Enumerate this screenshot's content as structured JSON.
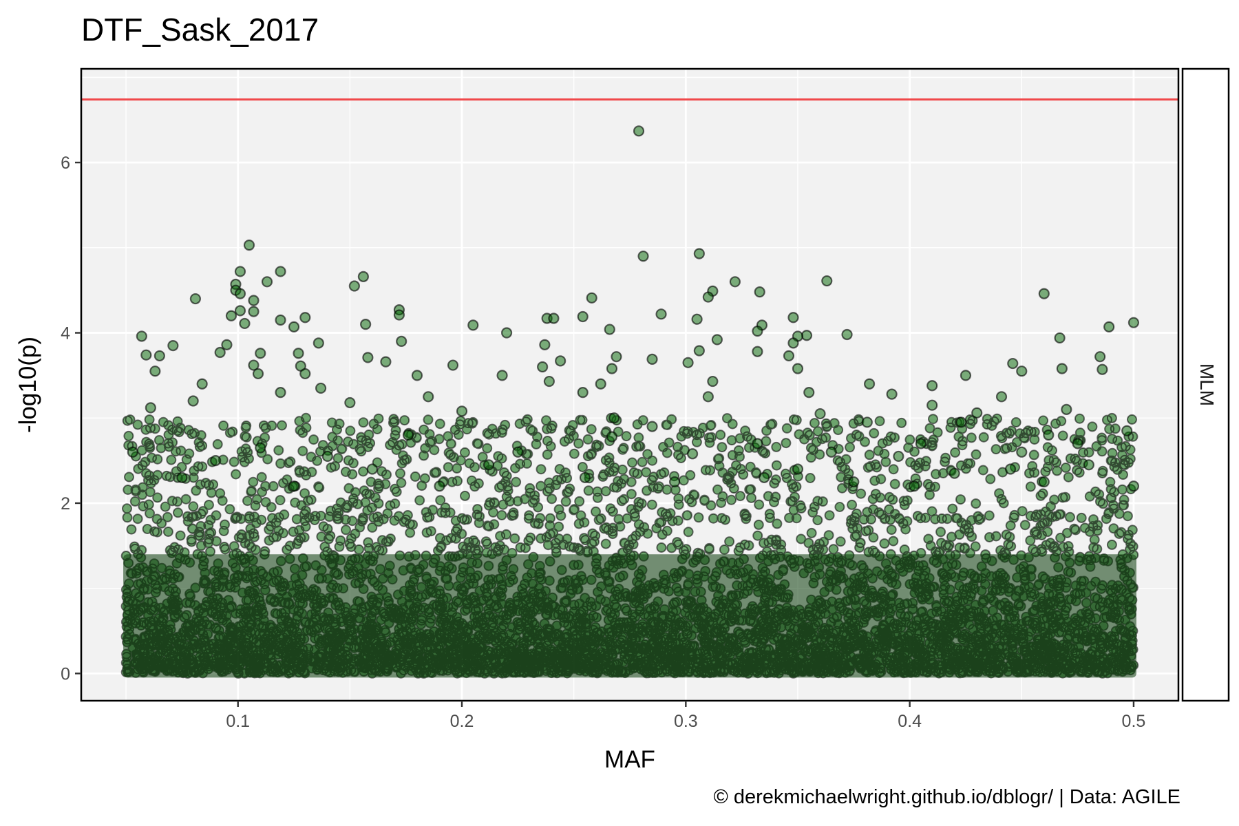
{
  "chart_data": {
    "type": "scatter",
    "title": "DTF_Sask_2017",
    "xlabel": "MAF",
    "ylabel": "-log10(p)",
    "facet_label": "MLM",
    "caption": "© derekmichaelwright.github.io/dblogr/ | Data: AGILE",
    "xlim": [
      0.03,
      0.52
    ],
    "ylim": [
      -0.32,
      7.1
    ],
    "x_ticks": [
      0.1,
      0.2,
      0.3,
      0.4,
      0.5
    ],
    "x_tick_labels": [
      "0.1",
      "0.2",
      "0.3",
      "0.4",
      "0.5"
    ],
    "y_ticks": [
      0,
      2,
      4,
      6
    ],
    "y_tick_labels": [
      "0",
      "2",
      "4",
      "6"
    ],
    "threshold_line": 6.74,
    "grid": true,
    "colors": {
      "panel_background": "#f2f2f2",
      "gridline": "#ffffff",
      "point_fill": "#006400",
      "point_stroke": "#000000",
      "threshold": "#f0484a"
    },
    "series": [
      {
        "points": [
          [
            0.279,
            6.37
          ],
          [
            0.281,
            4.9
          ],
          [
            0.105,
            5.03
          ],
          [
            0.306,
            4.93
          ],
          [
            0.101,
            4.72
          ],
          [
            0.119,
            4.72
          ],
          [
            0.156,
            4.66
          ],
          [
            0.363,
            4.61
          ],
          [
            0.113,
            4.6
          ],
          [
            0.322,
            4.6
          ],
          [
            0.099,
            4.57
          ],
          [
            0.152,
            4.55
          ],
          [
            0.099,
            4.5
          ],
          [
            0.312,
            4.49
          ],
          [
            0.333,
            4.48
          ],
          [
            0.101,
            4.46
          ],
          [
            0.46,
            4.46
          ],
          [
            0.31,
            4.42
          ],
          [
            0.258,
            4.41
          ],
          [
            0.081,
            4.4
          ],
          [
            0.107,
            4.38
          ],
          [
            0.172,
            4.27
          ],
          [
            0.101,
            4.26
          ],
          [
            0.107,
            4.25
          ],
          [
            0.289,
            4.22
          ],
          [
            0.172,
            4.21
          ],
          [
            0.097,
            4.2
          ],
          [
            0.254,
            4.19
          ],
          [
            0.13,
            4.18
          ],
          [
            0.238,
            4.17
          ],
          [
            0.241,
            4.17
          ],
          [
            0.348,
            4.18
          ],
          [
            0.305,
            4.16
          ],
          [
            0.119,
            4.15
          ],
          [
            0.5,
            4.12
          ],
          [
            0.103,
            4.11
          ],
          [
            0.157,
            4.1
          ],
          [
            0.205,
            4.09
          ],
          [
            0.334,
            4.09
          ],
          [
            0.125,
            4.07
          ],
          [
            0.489,
            4.07
          ],
          [
            0.266,
            4.04
          ],
          [
            0.332,
            4.02
          ],
          [
            0.22,
            4.0
          ],
          [
            0.372,
            3.98
          ],
          [
            0.354,
            3.97
          ],
          [
            0.057,
            3.96
          ],
          [
            0.35,
            3.96
          ],
          [
            0.467,
            3.94
          ],
          [
            0.314,
            3.92
          ],
          [
            0.173,
            3.9
          ],
          [
            0.136,
            3.88
          ],
          [
            0.348,
            3.88
          ],
          [
            0.095,
            3.86
          ],
          [
            0.237,
            3.86
          ],
          [
            0.071,
            3.85
          ],
          [
            0.306,
            3.79
          ],
          [
            0.332,
            3.78
          ],
          [
            0.092,
            3.77
          ],
          [
            0.11,
            3.76
          ],
          [
            0.127,
            3.76
          ],
          [
            0.059,
            3.74
          ],
          [
            0.065,
            3.73
          ],
          [
            0.346,
            3.73
          ],
          [
            0.485,
            3.72
          ],
          [
            0.269,
            3.72
          ],
          [
            0.158,
            3.71
          ],
          [
            0.285,
            3.69
          ],
          [
            0.244,
            3.67
          ],
          [
            0.166,
            3.66
          ],
          [
            0.301,
            3.65
          ],
          [
            0.107,
            3.62
          ],
          [
            0.128,
            3.61
          ],
          [
            0.236,
            3.6
          ],
          [
            0.446,
            3.64
          ],
          [
            0.267,
            3.58
          ],
          [
            0.468,
            3.58
          ],
          [
            0.35,
            3.58
          ],
          [
            0.063,
            3.55
          ],
          [
            0.45,
            3.55
          ],
          [
            0.486,
            3.57
          ],
          [
            0.196,
            3.62
          ],
          [
            0.109,
            3.52
          ],
          [
            0.13,
            3.52
          ],
          [
            0.239,
            3.43
          ],
          [
            0.312,
            3.43
          ],
          [
            0.218,
            3.5
          ],
          [
            0.425,
            3.5
          ],
          [
            0.41,
            3.38
          ],
          [
            0.18,
            3.5
          ],
          [
            0.084,
            3.4
          ],
          [
            0.262,
            3.4
          ],
          [
            0.382,
            3.4
          ],
          [
            0.137,
            3.35
          ],
          [
            0.355,
            3.3
          ],
          [
            0.392,
            3.28
          ],
          [
            0.254,
            3.3
          ],
          [
            0.441,
            3.25
          ],
          [
            0.119,
            3.3
          ],
          [
            0.185,
            3.25
          ],
          [
            0.08,
            3.2
          ],
          [
            0.31,
            3.25
          ],
          [
            0.15,
            3.18
          ],
          [
            0.41,
            3.15
          ],
          [
            0.47,
            3.1
          ],
          [
            0.061,
            3.12
          ],
          [
            0.2,
            3.08
          ],
          [
            0.43,
            3.06
          ],
          [
            0.36,
            3.05
          ],
          [
            0.268,
            3.0
          ],
          [
            0.285,
            2.9
          ],
          [
            0.381,
            2.95
          ],
          [
            0.423,
            2.95
          ],
          [
            0.497,
            2.85
          ],
          [
            0.462,
            2.8
          ],
          [
            0.267,
            2.78
          ],
          [
            0.053,
            2.6
          ],
          [
            0.45,
            2.6
          ],
          [
            0.405,
            2.7
          ],
          [
            0.332,
            2.7
          ],
          [
            0.176,
            2.8
          ],
          [
            0.225,
            2.6
          ],
          [
            0.365,
            2.6
          ],
          [
            0.475,
            2.7
          ],
          [
            0.11,
            2.65
          ],
          [
            0.14,
            2.55
          ],
          [
            0.395,
            2.55
          ],
          [
            0.303,
            2.58
          ],
          [
            0.09,
            2.5
          ],
          [
            0.48,
            2.45
          ],
          [
            0.212,
            2.45
          ],
          [
            0.445,
            2.4
          ],
          [
            0.35,
            2.4
          ],
          [
            0.16,
            2.4
          ],
          [
            0.42,
            2.35
          ],
          [
            0.255,
            2.3
          ],
          [
            0.335,
            2.3
          ],
          [
            0.5,
            2.2
          ],
          [
            0.075,
            2.3
          ],
          [
            0.19,
            2.2
          ],
          [
            0.125,
            2.2
          ],
          [
            0.375,
            2.25
          ],
          [
            0.295,
            2.25
          ],
          [
            0.46,
            2.25
          ],
          [
            0.402,
            2.2
          ]
        ]
      }
    ]
  }
}
